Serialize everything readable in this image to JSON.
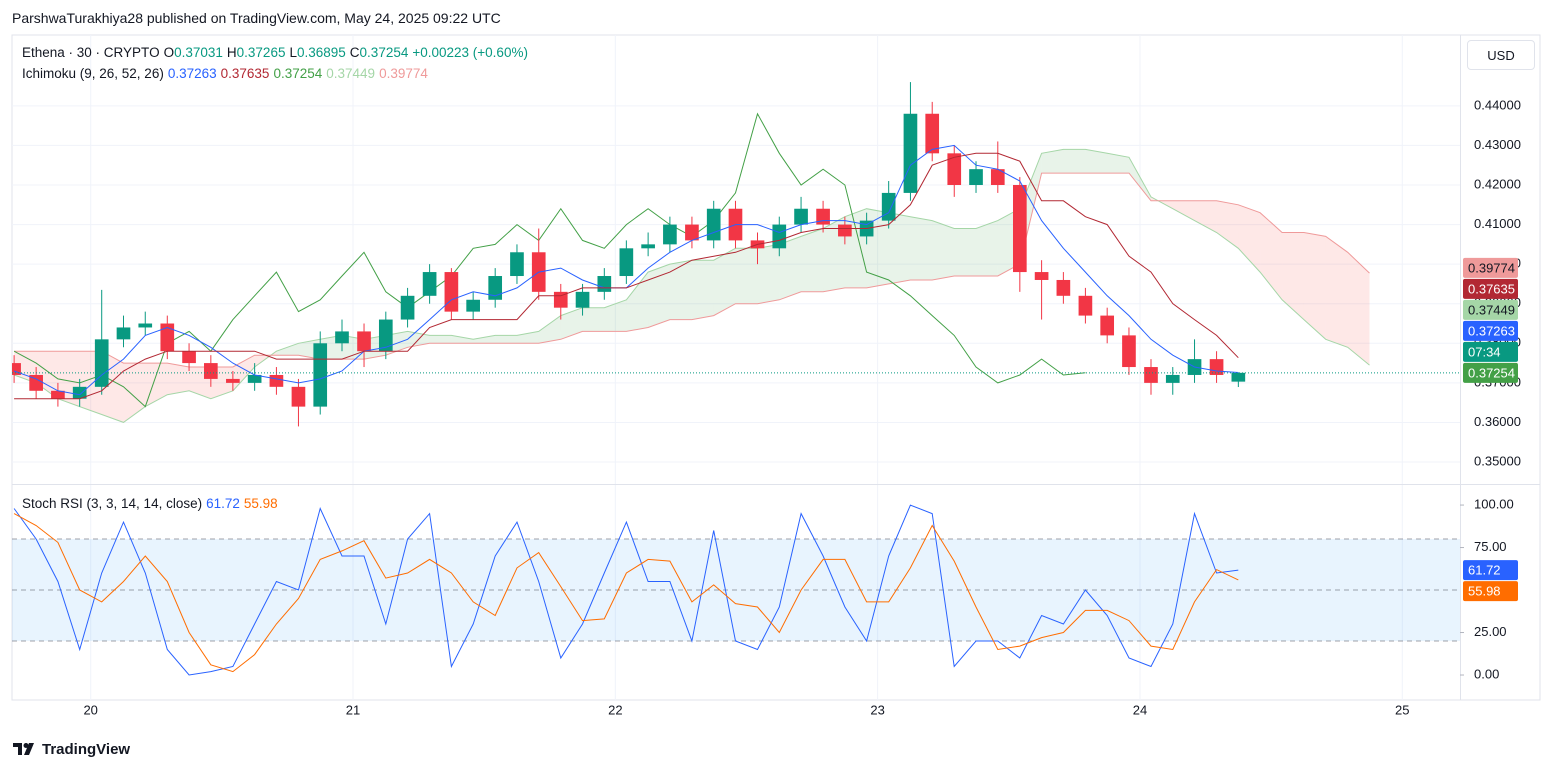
{
  "header": {
    "byline": "ParshwaTurakhiya28 published on TradingView.com, May 24, 2025 09:22 UTC",
    "currency": "USD",
    "brand": "TradingView"
  },
  "chart_data": {
    "type": "candlestick",
    "title": "Ethena · 30 · CRYPTO",
    "ohlc_labels": [
      "O",
      "H",
      "L",
      "C"
    ],
    "change": "+0.00223 (+0.60%)",
    "countdown": "07:34",
    "x": [
      19.708,
      19.792,
      19.875,
      19.958,
      20.042,
      20.125,
      20.208,
      20.292,
      20.375,
      20.458,
      20.542,
      20.625,
      20.708,
      20.792,
      20.875,
      20.958,
      21.042,
      21.125,
      21.208,
      21.292,
      21.375,
      21.458,
      21.542,
      21.625,
      21.708,
      21.792,
      21.875,
      21.958,
      22.042,
      22.125,
      22.208,
      22.292,
      22.375,
      22.458,
      22.542,
      22.625,
      22.708,
      22.792,
      22.875,
      22.958,
      23.042,
      23.125,
      23.208,
      23.292,
      23.375,
      23.458,
      23.542,
      23.625,
      23.708,
      23.792,
      23.875,
      23.958,
      24.042,
      24.125,
      24.208,
      24.292,
      24.375
    ],
    "xlim": [
      19.7,
      25.22
    ],
    "xticks": [
      20,
      21,
      22,
      23,
      24,
      25
    ],
    "ylim": [
      0.3447,
      0.4579
    ],
    "yticks": [
      {
        "value": 0.35,
        "label": "0.35000"
      },
      {
        "value": 0.36,
        "label": "0.36000"
      },
      {
        "value": 0.37,
        "label": "0.37000"
      },
      {
        "value": 0.38,
        "label": "0.38000"
      },
      {
        "value": 0.39,
        "label": "0.39000"
      },
      {
        "value": 0.4,
        "label": "0.40000"
      },
      {
        "value": 0.41,
        "label": "0.41000"
      },
      {
        "value": 0.42,
        "label": "0.42000"
      },
      {
        "value": 0.43,
        "label": "0.43000"
      },
      {
        "value": 0.44,
        "label": "0.44000"
      }
    ],
    "grid": true,
    "up_color": "#089981",
    "down_color": "#f23645",
    "open": [
      0.375,
      0.372,
      0.368,
      0.366,
      0.369,
      0.381,
      0.384,
      0.385,
      0.378,
      0.375,
      0.371,
      0.37,
      0.372,
      0.369,
      0.364,
      0.38,
      0.383,
      0.378,
      0.386,
      0.392,
      0.398,
      0.388,
      0.391,
      0.397,
      0.403,
      0.393,
      0.389,
      0.393,
      0.397,
      0.404,
      0.405,
      0.41,
      0.406,
      0.414,
      0.406,
      0.404,
      0.41,
      0.414,
      0.41,
      0.407,
      0.411,
      0.418,
      0.438,
      0.428,
      0.42,
      0.424,
      0.42,
      0.398,
      0.396,
      0.392,
      0.387,
      0.382,
      0.374,
      0.37,
      0.372,
      0.376,
      0.37031
    ],
    "high": [
      0.377,
      0.374,
      0.37,
      0.371,
      0.3935,
      0.387,
      0.388,
      0.387,
      0.38,
      0.377,
      0.373,
      0.375,
      0.374,
      0.371,
      0.383,
      0.386,
      0.385,
      0.388,
      0.394,
      0.4,
      0.399,
      0.393,
      0.399,
      0.405,
      0.409,
      0.395,
      0.395,
      0.399,
      0.406,
      0.408,
      0.412,
      0.412,
      0.416,
      0.416,
      0.408,
      0.412,
      0.417,
      0.416,
      0.412,
      0.413,
      0.421,
      0.446,
      0.441,
      0.43,
      0.426,
      0.431,
      0.422,
      0.401,
      0.398,
      0.394,
      0.389,
      0.384,
      0.376,
      0.374,
      0.381,
      0.378,
      0.37265
    ],
    "low": [
      0.37,
      0.366,
      0.364,
      0.364,
      0.367,
      0.379,
      0.382,
      0.376,
      0.373,
      0.369,
      0.368,
      0.368,
      0.367,
      0.359,
      0.362,
      0.378,
      0.374,
      0.376,
      0.384,
      0.39,
      0.386,
      0.386,
      0.389,
      0.395,
      0.391,
      0.386,
      0.387,
      0.391,
      0.395,
      0.402,
      0.403,
      0.404,
      0.404,
      0.404,
      0.4,
      0.402,
      0.408,
      0.408,
      0.405,
      0.405,
      0.409,
      0.416,
      0.426,
      0.417,
      0.418,
      0.418,
      0.393,
      0.386,
      0.39,
      0.385,
      0.38,
      0.372,
      0.367,
      0.367,
      0.37,
      0.37,
      0.36895
    ],
    "close": [
      0.372,
      0.368,
      0.366,
      0.369,
      0.381,
      0.384,
      0.385,
      0.378,
      0.375,
      0.371,
      0.37,
      0.372,
      0.369,
      0.364,
      0.38,
      0.383,
      0.378,
      0.386,
      0.392,
      0.398,
      0.388,
      0.391,
      0.397,
      0.403,
      0.393,
      0.389,
      0.393,
      0.397,
      0.404,
      0.405,
      0.41,
      0.406,
      0.414,
      0.406,
      0.404,
      0.41,
      0.414,
      0.41,
      0.407,
      0.411,
      0.418,
      0.438,
      0.428,
      0.42,
      0.424,
      0.42,
      0.398,
      0.396,
      0.392,
      0.387,
      0.382,
      0.374,
      0.37,
      0.372,
      0.376,
      0.372,
      0.37254
    ],
    "ichimoku": {
      "label": "Ichimoku (9, 26, 52, 26)",
      "tenkan": {
        "color": "#2962ff",
        "values": [
          0.373,
          0.371,
          0.368,
          0.367,
          0.372,
          0.376,
          0.382,
          0.384,
          0.382,
          0.379,
          0.375,
          0.372,
          0.371,
          0.37,
          0.371,
          0.373,
          0.378,
          0.379,
          0.381,
          0.386,
          0.391,
          0.393,
          0.392,
          0.394,
          0.398,
          0.399,
          0.396,
          0.394,
          0.394,
          0.399,
          0.403,
          0.406,
          0.408,
          0.41,
          0.41,
          0.408,
          0.41,
          0.411,
          0.411,
          0.41,
          0.413,
          0.425,
          0.429,
          0.43,
          0.425,
          0.424,
          0.421,
          0.411,
          0.404,
          0.398,
          0.392,
          0.387,
          0.381,
          0.377,
          0.374,
          0.373,
          0.37263
        ]
      },
      "kijun": {
        "color": "#b22833",
        "values": [
          0.366,
          0.366,
          0.366,
          0.366,
          0.368,
          0.373,
          0.376,
          0.378,
          0.378,
          0.378,
          0.378,
          0.378,
          0.376,
          0.376,
          0.376,
          0.376,
          0.378,
          0.378,
          0.378,
          0.384,
          0.386,
          0.386,
          0.386,
          0.386,
          0.392,
          0.392,
          0.394,
          0.394,
          0.394,
          0.396,
          0.398,
          0.401,
          0.402,
          0.403,
          0.405,
          0.406,
          0.408,
          0.409,
          0.409,
          0.409,
          0.41,
          0.415,
          0.425,
          0.427,
          0.428,
          0.428,
          0.426,
          0.416,
          0.416,
          0.412,
          0.41,
          0.402,
          0.398,
          0.39,
          0.386,
          0.382,
          0.37635
        ]
      },
      "lagging": {
        "color": "#43a047",
        "values": [
          0.378,
          0.375,
          0.371,
          0.37,
          0.372,
          0.369,
          0.364,
          0.38,
          0.383,
          0.378,
          0.386,
          0.392,
          0.398,
          0.388,
          0.391,
          0.397,
          0.403,
          0.393,
          0.389,
          0.393,
          0.397,
          0.404,
          0.405,
          0.41,
          0.406,
          0.414,
          0.406,
          0.404,
          0.41,
          0.414,
          0.41,
          0.407,
          0.411,
          0.418,
          0.438,
          0.428,
          0.42,
          0.424,
          0.42,
          0.398,
          0.396,
          0.392,
          0.387,
          0.382,
          0.374,
          0.37,
          0.372,
          0.376,
          0.372,
          0.37254,
          null,
          null,
          null,
          null,
          null,
          null,
          null
        ]
      },
      "cloud": {
        "x": [
          19.708,
          19.792,
          19.875,
          19.958,
          20.042,
          20.125,
          20.208,
          20.292,
          20.375,
          20.458,
          20.542,
          20.625,
          20.708,
          20.792,
          20.875,
          20.958,
          21.042,
          21.125,
          21.208,
          21.292,
          21.375,
          21.458,
          21.542,
          21.625,
          21.708,
          21.792,
          21.875,
          21.958,
          22.042,
          22.125,
          22.208,
          22.292,
          22.375,
          22.458,
          22.542,
          22.625,
          22.708,
          22.792,
          22.875,
          22.958,
          23.042,
          23.125,
          23.208,
          23.292,
          23.375,
          23.458,
          23.542,
          23.625,
          23.708,
          23.792,
          23.875,
          23.958,
          24.042,
          24.125,
          24.208,
          24.292,
          24.375,
          24.458,
          24.542,
          24.625,
          24.708,
          24.792,
          24.875
        ],
        "span_a": {
          "color": "#a5d6a7",
          "values": [
            0.372,
            0.37,
            0.366,
            0.364,
            0.362,
            0.36,
            0.364,
            0.367,
            0.368,
            0.366,
            0.368,
            0.374,
            0.378,
            0.38,
            0.381,
            0.382,
            0.381,
            0.382,
            0.383,
            0.382,
            0.382,
            0.381,
            0.382,
            0.382,
            0.383,
            0.387,
            0.389,
            0.389,
            0.391,
            0.398,
            0.4,
            0.401,
            0.401,
            0.404,
            0.404,
            0.405,
            0.407,
            0.409,
            0.412,
            0.414,
            0.413,
            0.412,
            0.411,
            0.409,
            0.409,
            0.411,
            0.414,
            0.428,
            0.429,
            0.429,
            0.428,
            0.427,
            0.417,
            0.414,
            0.411,
            0.408,
            0.404,
            0.398,
            0.391,
            0.386,
            0.381,
            0.379,
            0.37449
          ]
        },
        "span_b": {
          "color": "#ef9a9a",
          "values": [
            0.378,
            0.378,
            0.378,
            0.378,
            0.378,
            0.375,
            0.375,
            0.375,
            0.374,
            0.374,
            0.374,
            0.377,
            0.377,
            0.377,
            0.376,
            0.376,
            0.376,
            0.377,
            0.379,
            0.38,
            0.38,
            0.38,
            0.38,
            0.38,
            0.38,
            0.381,
            0.383,
            0.383,
            0.383,
            0.384,
            0.386,
            0.386,
            0.387,
            0.39,
            0.39,
            0.391,
            0.393,
            0.393,
            0.394,
            0.394,
            0.395,
            0.396,
            0.396,
            0.397,
            0.397,
            0.397,
            0.4,
            0.423,
            0.423,
            0.423,
            0.423,
            0.423,
            0.416,
            0.416,
            0.416,
            0.416,
            0.415,
            0.413,
            0.408,
            0.408,
            0.407,
            0.403,
            0.39774
          ]
        },
        "up_fill": "rgba(67,160,71,0.12)",
        "down_fill": "rgba(244,67,54,0.12)"
      }
    },
    "stoch_rsi": {
      "type": "line",
      "label": "Stoch RSI (3, 3, 14, 14, close)",
      "ylim": [
        -14.7,
        111.8
      ],
      "yticks": [
        {
          "value": 0,
          "label": "0.00"
        },
        {
          "value": 25,
          "label": "25.00"
        },
        {
          "value": 75,
          "label": "75.00"
        },
        {
          "value": 100,
          "label": "100.00"
        }
      ],
      "band": [
        20,
        80
      ],
      "midline": 50,
      "band_color": "rgba(33,150,243,0.1)",
      "series": [
        {
          "color": "#2962ff",
          "values": [
            98,
            80,
            55,
            15,
            60,
            90,
            60,
            15,
            0,
            2,
            5,
            30,
            55,
            50,
            98,
            70,
            70,
            30,
            80,
            95,
            5,
            30,
            70,
            90,
            55,
            10,
            30,
            60,
            90,
            55,
            55,
            20,
            85,
            20,
            15,
            40,
            95,
            70,
            40,
            20,
            70,
            100,
            95,
            5,
            20,
            20,
            10,
            35,
            30,
            50,
            35,
            10,
            5,
            30,
            95,
            60,
            61.72
          ]
        },
        {
          "color": "#ff6d00",
          "values": [
            95,
            88,
            78,
            50,
            43,
            55,
            70,
            55,
            25,
            6,
            2,
            12,
            30,
            45,
            68,
            73,
            79,
            57,
            60,
            68,
            60,
            43,
            35,
            63,
            72,
            52,
            32,
            33,
            60,
            68,
            67,
            43,
            53,
            42,
            40,
            25,
            50,
            68,
            68,
            43,
            43,
            63,
            88,
            67,
            40,
            15,
            17,
            22,
            25,
            38,
            38,
            32,
            17,
            15,
            43,
            62,
            55.98
          ]
        }
      ]
    }
  }
}
